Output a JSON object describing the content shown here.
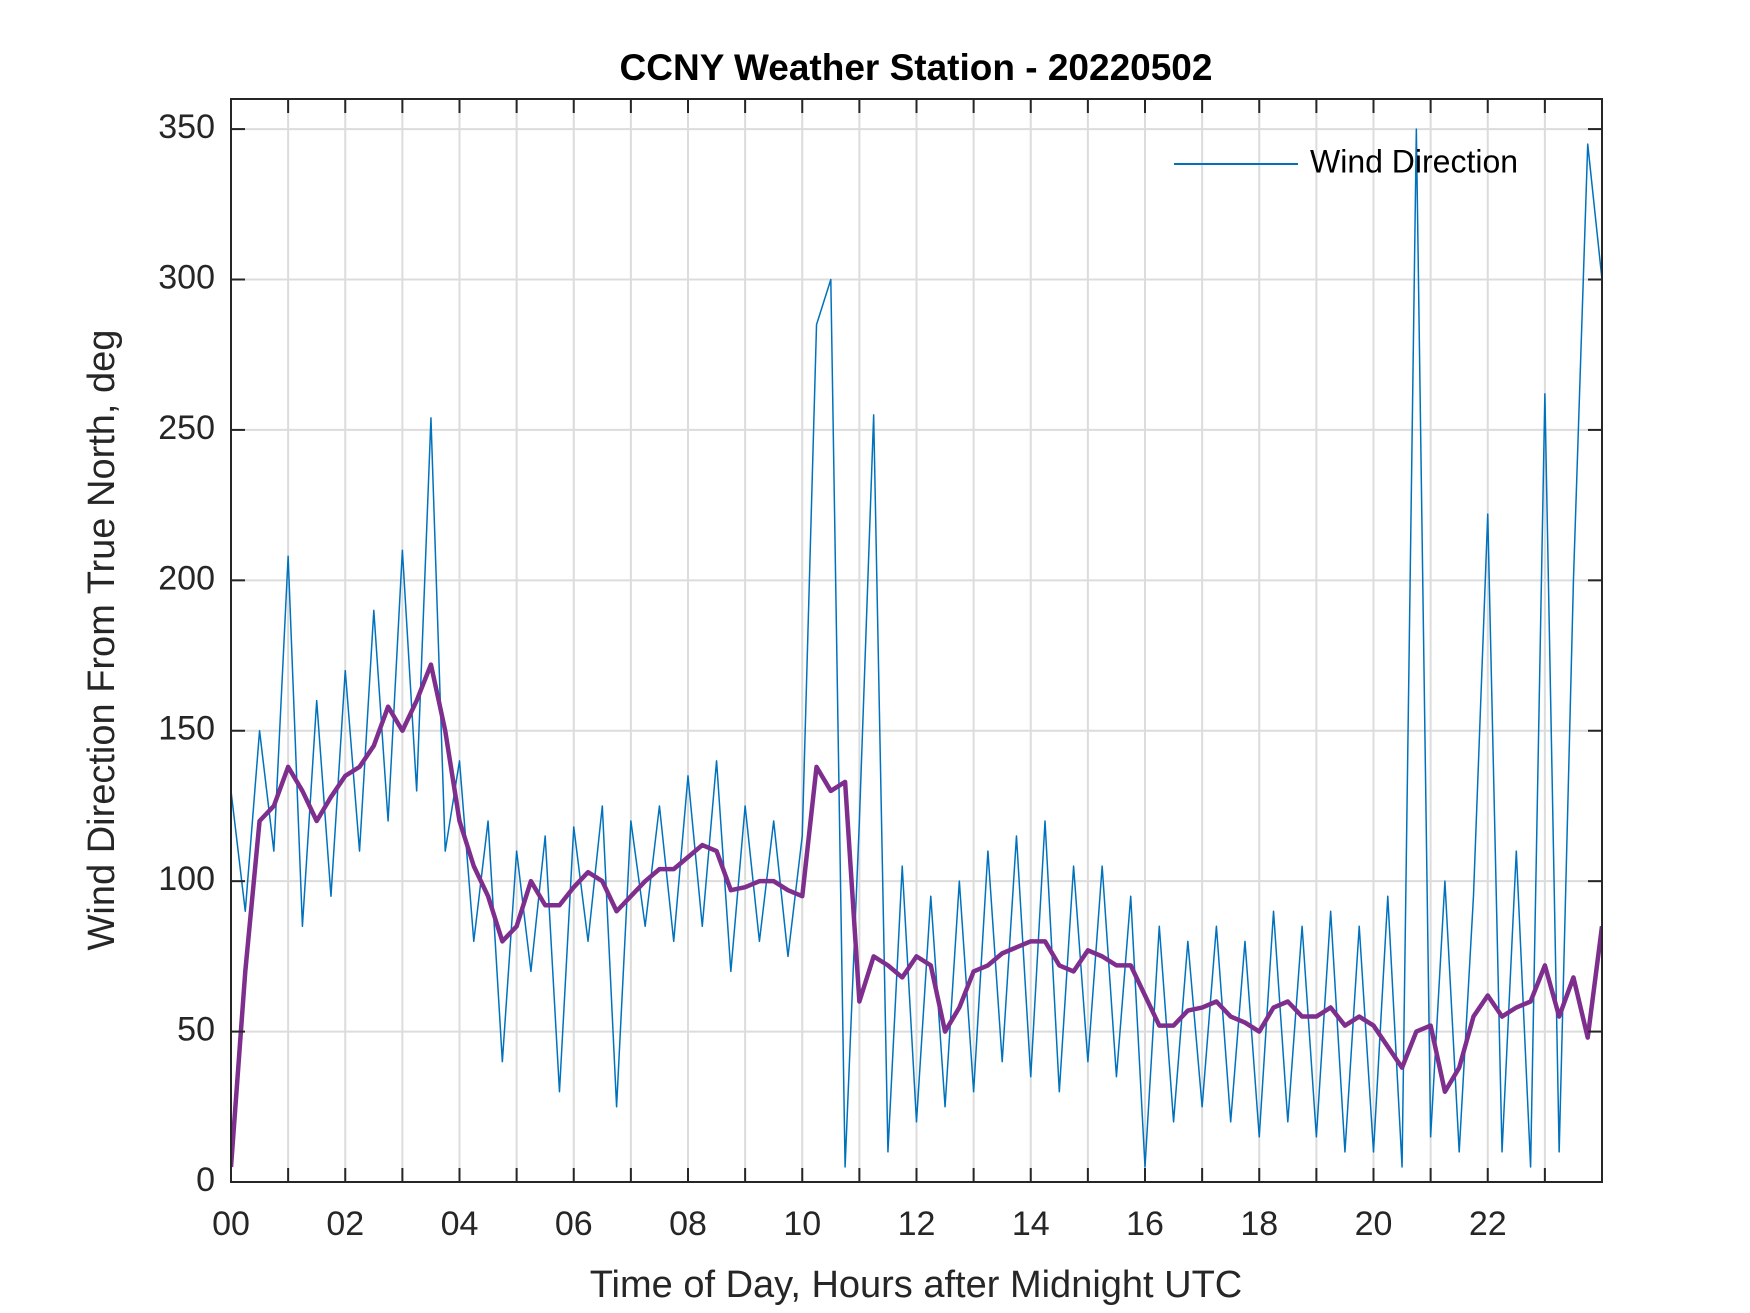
{
  "chart_data": {
    "type": "line",
    "title": "CCNY Weather Station - 20220502",
    "x_label": "Time of Day, Hours after Midnight UTC",
    "y_label": "Wind Direction From True North, deg",
    "xlim": [
      0,
      24
    ],
    "ylim": [
      0,
      360
    ],
    "xticks": [
      {
        "value": 0,
        "label": "00"
      },
      {
        "value": 2,
        "label": "02"
      },
      {
        "value": 4,
        "label": "04"
      },
      {
        "value": 6,
        "label": "06"
      },
      {
        "value": 8,
        "label": "08"
      },
      10,
      12,
      14,
      16,
      18,
      20,
      22
    ],
    "x_minor_ticks": [
      1,
      3,
      5,
      7,
      9,
      11,
      13,
      15,
      17,
      19,
      21,
      23
    ],
    "yticks": [
      0,
      50,
      100,
      150,
      200,
      250,
      300,
      350
    ],
    "grid": true,
    "legend": "upper right",
    "x": [
      0,
      0.25,
      0.5,
      0.75,
      1,
      1.25,
      1.5,
      1.75,
      2,
      2.25,
      2.5,
      2.75,
      3,
      3.25,
      3.5,
      3.75,
      4,
      4.25,
      4.5,
      4.75,
      5,
      5.25,
      5.5,
      5.75,
      6,
      6.25,
      6.5,
      6.75,
      7,
      7.25,
      7.5,
      7.75,
      8,
      8.25,
      8.5,
      8.75,
      9,
      9.25,
      9.5,
      9.75,
      10,
      10.25,
      10.5,
      10.75,
      11,
      11.25,
      11.5,
      11.75,
      12,
      12.25,
      12.5,
      12.75,
      13,
      13.25,
      13.5,
      13.75,
      14,
      14.25,
      14.5,
      14.75,
      15,
      15.25,
      15.5,
      15.75,
      16,
      16.25,
      16.5,
      16.75,
      17,
      17.25,
      17.5,
      17.75,
      18,
      18.25,
      18.5,
      18.75,
      19,
      19.25,
      19.5,
      19.75,
      20,
      20.25,
      20.5,
      20.75,
      21,
      21.25,
      21.5,
      21.75,
      22,
      22.25,
      22.5,
      22.75,
      23,
      23.25,
      23.5,
      23.75,
      24
    ],
    "series": [
      {
        "name": "Wind Direction",
        "color": "#0072bd",
        "width": 1.5,
        "values": [
          130,
          90,
          150,
          110,
          208,
          85,
          160,
          95,
          170,
          110,
          190,
          120,
          210,
          130,
          254,
          110,
          140,
          80,
          120,
          40,
          110,
          70,
          115,
          30,
          118,
          80,
          125,
          25,
          120,
          85,
          125,
          80,
          135,
          85,
          140,
          70,
          125,
          80,
          120,
          75,
          115,
          285,
          300,
          5,
          120,
          255,
          10,
          105,
          20,
          95,
          25,
          100,
          30,
          110,
          40,
          115,
          35,
          120,
          30,
          105,
          40,
          105,
          35,
          95,
          5,
          85,
          20,
          80,
          25,
          85,
          20,
          80,
          15,
          90,
          20,
          85,
          15,
          90,
          10,
          85,
          10,
          95,
          5,
          350,
          15,
          100,
          10,
          95,
          222,
          10,
          110,
          5,
          262,
          10,
          200,
          345,
          300
        ]
      },
      {
        "color": "#7e2f8e",
        "width": 4.5,
        "values": [
          5,
          70,
          120,
          125,
          138,
          130,
          120,
          128,
          135,
          138,
          145,
          158,
          150,
          160,
          172,
          150,
          120,
          105,
          95,
          80,
          85,
          100,
          92,
          92,
          98,
          103,
          100,
          90,
          95,
          100,
          104,
          104,
          108,
          112,
          110,
          97,
          98,
          100,
          100,
          97,
          95,
          138,
          130,
          133,
          60,
          75,
          72,
          68,
          75,
          72,
          50,
          58,
          70,
          72,
          76,
          78,
          80,
          80,
          72,
          70,
          77,
          75,
          72,
          72,
          62,
          52,
          52,
          57,
          58,
          60,
          55,
          53,
          50,
          58,
          60,
          55,
          55,
          58,
          52,
          55,
          52,
          45,
          38,
          50,
          52,
          30,
          38,
          55,
          62,
          55,
          58,
          60,
          72,
          55,
          68,
          48,
          85
        ]
      }
    ]
  }
}
